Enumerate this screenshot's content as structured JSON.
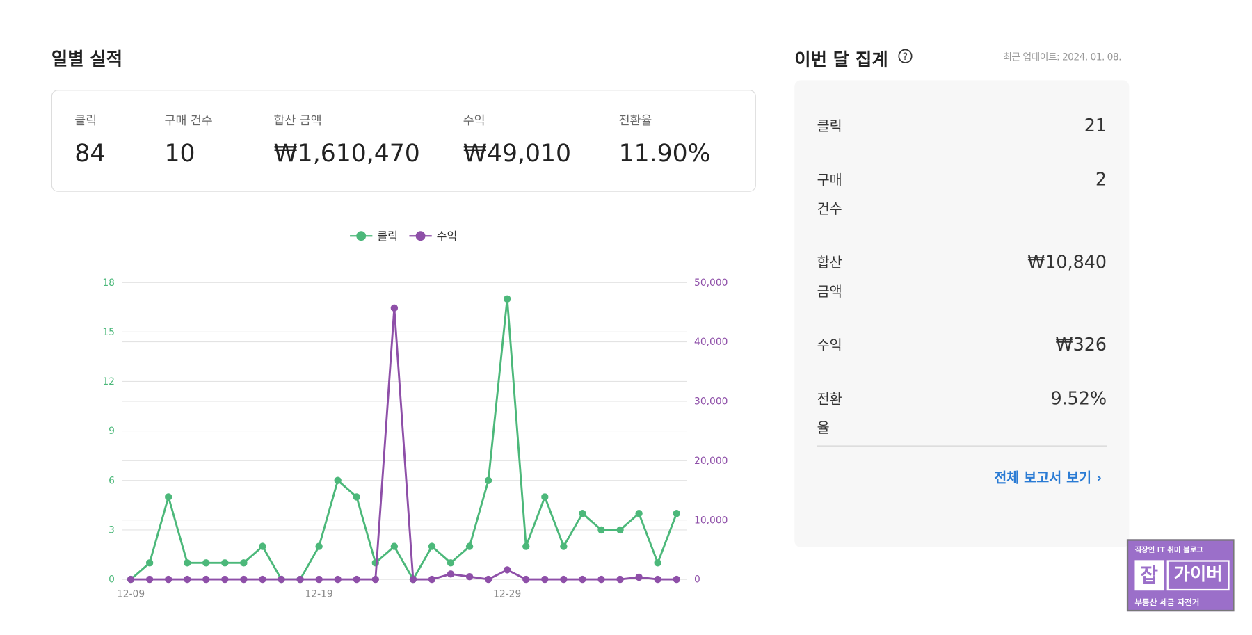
{
  "section_title": "일별 실적",
  "summary": [
    {
      "label": "클릭",
      "value": "84"
    },
    {
      "label": "구매 건수",
      "value": "10"
    },
    {
      "label": "합산 금액",
      "value": "₩1,610,470"
    },
    {
      "label": "수익",
      "value": "₩49,010"
    },
    {
      "label": "전환율",
      "value": "11.90%"
    }
  ],
  "chart_data": {
    "type": "line",
    "categories": [
      "12-09",
      null,
      null,
      null,
      null,
      null,
      null,
      null,
      null,
      null,
      "12-19",
      null,
      null,
      null,
      null,
      null,
      null,
      null,
      null,
      null,
      "12-29",
      null,
      null,
      null,
      null,
      null,
      null,
      null,
      null,
      null
    ],
    "series": [
      {
        "name": "클릭",
        "color": "#4cb87a",
        "axis": "y",
        "values": [
          0,
          1,
          5,
          1,
          1,
          1,
          1,
          2,
          0,
          0,
          2,
          6,
          5,
          1,
          2,
          0,
          2,
          1,
          2,
          6,
          17,
          2,
          5,
          2,
          4,
          3,
          3,
          4,
          1,
          4
        ]
      },
      {
        "name": "수익",
        "color": "#8e4fa8",
        "axis": "y2",
        "values": [
          0,
          0,
          0,
          0,
          0,
          0,
          0,
          0,
          0,
          0,
          0,
          0,
          0,
          0,
          45700,
          0,
          0,
          900,
          450,
          0,
          1600,
          0,
          0,
          0,
          0,
          0,
          0,
          360,
          0,
          0
        ]
      }
    ],
    "ylim": [
      0,
      18
    ],
    "yticks": [
      0,
      3,
      6,
      9,
      12,
      15,
      18
    ],
    "y2lim": [
      0,
      50000
    ],
    "y2ticks": [
      0,
      {
        "value": 10000,
        "label": "10,000"
      },
      {
        "value": 20000,
        "label": "20,000"
      },
      {
        "value": 30000,
        "label": "30,000"
      },
      {
        "value": 40000,
        "label": "40,000"
      },
      {
        "value": 50000,
        "label": "50,000"
      }
    ],
    "grid": true,
    "legend": "top"
  },
  "monthly": {
    "title": "이번 달 집계",
    "updated": "최근 업데이트: 2024. 01. 08.",
    "rows": [
      {
        "label": "클릭",
        "value": "21"
      },
      {
        "label": "구매 건수",
        "value": "2"
      },
      {
        "label": "합산 금액",
        "value": "₩10,840"
      },
      {
        "label": "수익",
        "value": "₩326"
      },
      {
        "label": "전환율",
        "value": "9.52%"
      }
    ],
    "link": "전체 보고서 보기"
  },
  "watermark": {
    "top": "직장인 IT 취미 블로그",
    "badge": "잡",
    "name": "가이버",
    "bottom": "부동산 세금 자전거"
  }
}
